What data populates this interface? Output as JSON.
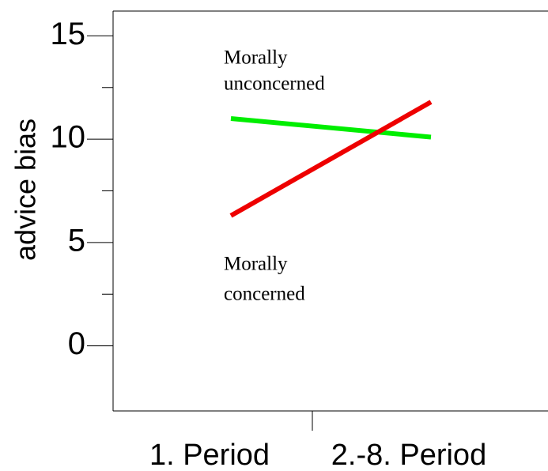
{
  "chart_data": {
    "type": "line",
    "y_label": "advice bias",
    "categories": [
      "1. Period",
      "2.-8. Period"
    ],
    "series": [
      {
        "color": "#00ee00",
        "values": [
          11.0,
          10.1
        ]
      },
      {
        "color": "#ee0000",
        "values": [
          6.3,
          11.8
        ]
      }
    ],
    "annotations": [
      {
        "lines": [
          "Morally",
          "unconcerned"
        ]
      },
      {
        "lines": [
          "Morally",
          "concerned"
        ]
      }
    ],
    "ylim": [
      -3.15,
      16.2
    ],
    "yticks": [
      0,
      5,
      10,
      15
    ],
    "yminor_ticks": [
      2.5,
      7.5,
      12.5
    ]
  }
}
